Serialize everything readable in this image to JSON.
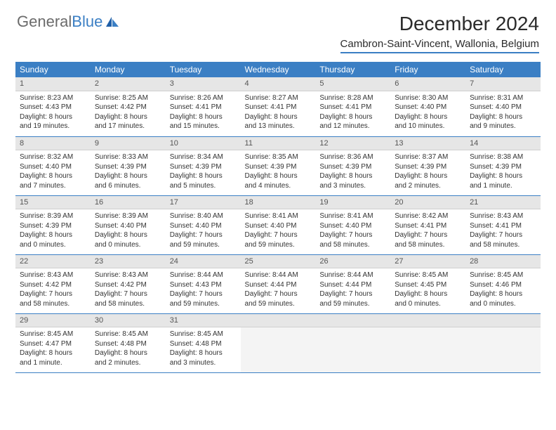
{
  "logo": {
    "part1": "General",
    "part2": "Blue"
  },
  "title": "December 2024",
  "location": "Cambron-Saint-Vincent, Wallonia, Belgium",
  "weekdays": [
    "Sunday",
    "Monday",
    "Tuesday",
    "Wednesday",
    "Thursday",
    "Friday",
    "Saturday"
  ],
  "colors": {
    "header_bg": "#3b7fc4",
    "header_text": "#ffffff",
    "daynum_bg": "#e6e6e6",
    "rule": "#3b7fc4",
    "body_text": "#333333"
  },
  "fonts": {
    "title_size_pt": 21,
    "location_size_pt": 11,
    "weekday_size_pt": 9,
    "cell_size_pt": 7.5
  },
  "weeks": [
    [
      {
        "n": "1",
        "sunrise": "Sunrise: 8:23 AM",
        "sunset": "Sunset: 4:43 PM",
        "d1": "Daylight: 8 hours",
        "d2": "and 19 minutes."
      },
      {
        "n": "2",
        "sunrise": "Sunrise: 8:25 AM",
        "sunset": "Sunset: 4:42 PM",
        "d1": "Daylight: 8 hours",
        "d2": "and 17 minutes."
      },
      {
        "n": "3",
        "sunrise": "Sunrise: 8:26 AM",
        "sunset": "Sunset: 4:41 PM",
        "d1": "Daylight: 8 hours",
        "d2": "and 15 minutes."
      },
      {
        "n": "4",
        "sunrise": "Sunrise: 8:27 AM",
        "sunset": "Sunset: 4:41 PM",
        "d1": "Daylight: 8 hours",
        "d2": "and 13 minutes."
      },
      {
        "n": "5",
        "sunrise": "Sunrise: 8:28 AM",
        "sunset": "Sunset: 4:41 PM",
        "d1": "Daylight: 8 hours",
        "d2": "and 12 minutes."
      },
      {
        "n": "6",
        "sunrise": "Sunrise: 8:30 AM",
        "sunset": "Sunset: 4:40 PM",
        "d1": "Daylight: 8 hours",
        "d2": "and 10 minutes."
      },
      {
        "n": "7",
        "sunrise": "Sunrise: 8:31 AM",
        "sunset": "Sunset: 4:40 PM",
        "d1": "Daylight: 8 hours",
        "d2": "and 9 minutes."
      }
    ],
    [
      {
        "n": "8",
        "sunrise": "Sunrise: 8:32 AM",
        "sunset": "Sunset: 4:40 PM",
        "d1": "Daylight: 8 hours",
        "d2": "and 7 minutes."
      },
      {
        "n": "9",
        "sunrise": "Sunrise: 8:33 AM",
        "sunset": "Sunset: 4:39 PM",
        "d1": "Daylight: 8 hours",
        "d2": "and 6 minutes."
      },
      {
        "n": "10",
        "sunrise": "Sunrise: 8:34 AM",
        "sunset": "Sunset: 4:39 PM",
        "d1": "Daylight: 8 hours",
        "d2": "and 5 minutes."
      },
      {
        "n": "11",
        "sunrise": "Sunrise: 8:35 AM",
        "sunset": "Sunset: 4:39 PM",
        "d1": "Daylight: 8 hours",
        "d2": "and 4 minutes."
      },
      {
        "n": "12",
        "sunrise": "Sunrise: 8:36 AM",
        "sunset": "Sunset: 4:39 PM",
        "d1": "Daylight: 8 hours",
        "d2": "and 3 minutes."
      },
      {
        "n": "13",
        "sunrise": "Sunrise: 8:37 AM",
        "sunset": "Sunset: 4:39 PM",
        "d1": "Daylight: 8 hours",
        "d2": "and 2 minutes."
      },
      {
        "n": "14",
        "sunrise": "Sunrise: 8:38 AM",
        "sunset": "Sunset: 4:39 PM",
        "d1": "Daylight: 8 hours",
        "d2": "and 1 minute."
      }
    ],
    [
      {
        "n": "15",
        "sunrise": "Sunrise: 8:39 AM",
        "sunset": "Sunset: 4:39 PM",
        "d1": "Daylight: 8 hours",
        "d2": "and 0 minutes."
      },
      {
        "n": "16",
        "sunrise": "Sunrise: 8:39 AM",
        "sunset": "Sunset: 4:40 PM",
        "d1": "Daylight: 8 hours",
        "d2": "and 0 minutes."
      },
      {
        "n": "17",
        "sunrise": "Sunrise: 8:40 AM",
        "sunset": "Sunset: 4:40 PM",
        "d1": "Daylight: 7 hours",
        "d2": "and 59 minutes."
      },
      {
        "n": "18",
        "sunrise": "Sunrise: 8:41 AM",
        "sunset": "Sunset: 4:40 PM",
        "d1": "Daylight: 7 hours",
        "d2": "and 59 minutes."
      },
      {
        "n": "19",
        "sunrise": "Sunrise: 8:41 AM",
        "sunset": "Sunset: 4:40 PM",
        "d1": "Daylight: 7 hours",
        "d2": "and 58 minutes."
      },
      {
        "n": "20",
        "sunrise": "Sunrise: 8:42 AM",
        "sunset": "Sunset: 4:41 PM",
        "d1": "Daylight: 7 hours",
        "d2": "and 58 minutes."
      },
      {
        "n": "21",
        "sunrise": "Sunrise: 8:43 AM",
        "sunset": "Sunset: 4:41 PM",
        "d1": "Daylight: 7 hours",
        "d2": "and 58 minutes."
      }
    ],
    [
      {
        "n": "22",
        "sunrise": "Sunrise: 8:43 AM",
        "sunset": "Sunset: 4:42 PM",
        "d1": "Daylight: 7 hours",
        "d2": "and 58 minutes."
      },
      {
        "n": "23",
        "sunrise": "Sunrise: 8:43 AM",
        "sunset": "Sunset: 4:42 PM",
        "d1": "Daylight: 7 hours",
        "d2": "and 58 minutes."
      },
      {
        "n": "24",
        "sunrise": "Sunrise: 8:44 AM",
        "sunset": "Sunset: 4:43 PM",
        "d1": "Daylight: 7 hours",
        "d2": "and 59 minutes."
      },
      {
        "n": "25",
        "sunrise": "Sunrise: 8:44 AM",
        "sunset": "Sunset: 4:44 PM",
        "d1": "Daylight: 7 hours",
        "d2": "and 59 minutes."
      },
      {
        "n": "26",
        "sunrise": "Sunrise: 8:44 AM",
        "sunset": "Sunset: 4:44 PM",
        "d1": "Daylight: 7 hours",
        "d2": "and 59 minutes."
      },
      {
        "n": "27",
        "sunrise": "Sunrise: 8:45 AM",
        "sunset": "Sunset: 4:45 PM",
        "d1": "Daylight: 8 hours",
        "d2": "and 0 minutes."
      },
      {
        "n": "28",
        "sunrise": "Sunrise: 8:45 AM",
        "sunset": "Sunset: 4:46 PM",
        "d1": "Daylight: 8 hours",
        "d2": "and 0 minutes."
      }
    ],
    [
      {
        "n": "29",
        "sunrise": "Sunrise: 8:45 AM",
        "sunset": "Sunset: 4:47 PM",
        "d1": "Daylight: 8 hours",
        "d2": "and 1 minute."
      },
      {
        "n": "30",
        "sunrise": "Sunrise: 8:45 AM",
        "sunset": "Sunset: 4:48 PM",
        "d1": "Daylight: 8 hours",
        "d2": "and 2 minutes."
      },
      {
        "n": "31",
        "sunrise": "Sunrise: 8:45 AM",
        "sunset": "Sunset: 4:48 PM",
        "d1": "Daylight: 8 hours",
        "d2": "and 3 minutes."
      },
      {
        "empty": true
      },
      {
        "empty": true
      },
      {
        "empty": true
      },
      {
        "empty": true
      }
    ]
  ]
}
